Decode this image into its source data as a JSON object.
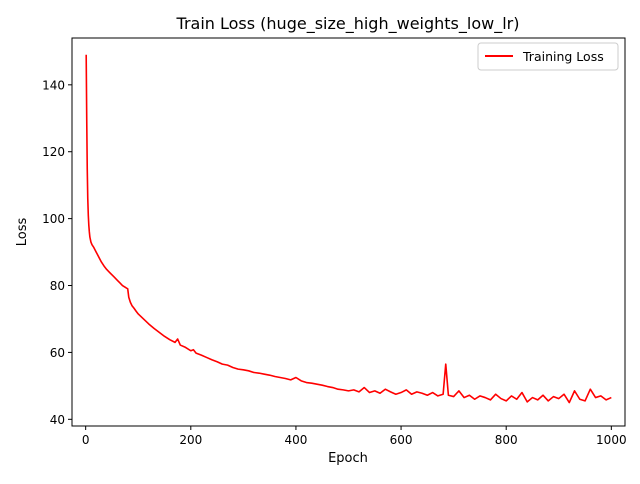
{
  "chart_data": {
    "type": "line",
    "title": "Train Loss (huge_size_high_weights_low_lr)",
    "xlabel": "Epoch",
    "ylabel": "Loss",
    "xlim": [
      -26,
      1026
    ],
    "ylim": [
      38,
      154
    ],
    "xticks": [
      0,
      200,
      400,
      600,
      800,
      1000
    ],
    "yticks": [
      40,
      60,
      80,
      100,
      120,
      140
    ],
    "xtick_labels": [
      "0",
      "200",
      "400",
      "600",
      "800",
      "1000"
    ],
    "ytick_labels": [
      "40",
      "60",
      "80",
      "100",
      "120",
      "140"
    ],
    "grid": false,
    "legend": {
      "placement": "upper right"
    },
    "series": [
      {
        "name": "Training Loss",
        "color": "#ff0000",
        "x": [
          1,
          2,
          3,
          4,
          5,
          6,
          7,
          8,
          10,
          12,
          15,
          20,
          25,
          30,
          35,
          40,
          45,
          50,
          55,
          60,
          65,
          70,
          75,
          80,
          82,
          85,
          88,
          92,
          96,
          100,
          110,
          120,
          130,
          140,
          150,
          160,
          170,
          175,
          180,
          190,
          200,
          205,
          210,
          220,
          230,
          240,
          250,
          260,
          270,
          280,
          290,
          300,
          310,
          320,
          330,
          340,
          350,
          360,
          370,
          380,
          390,
          400,
          410,
          420,
          430,
          440,
          450,
          460,
          470,
          480,
          490,
          500,
          510,
          520,
          530,
          540,
          550,
          560,
          570,
          580,
          590,
          600,
          610,
          620,
          630,
          640,
          650,
          660,
          670,
          680,
          685,
          690,
          700,
          710,
          720,
          730,
          740,
          750,
          760,
          770,
          780,
          790,
          800,
          810,
          820,
          830,
          840,
          850,
          860,
          870,
          880,
          890,
          900,
          910,
          920,
          930,
          940,
          950,
          960,
          970,
          980,
          990,
          1000
        ],
        "y": [
          149,
          130,
          115,
          106,
          101,
          98,
          96,
          94.5,
          93,
          92.2,
          91.5,
          90,
          88.5,
          87,
          85.8,
          84.8,
          84,
          83.2,
          82.4,
          81.6,
          80.8,
          80,
          79.5,
          79,
          76.5,
          75,
          74,
          73.2,
          72.3,
          71.5,
          70,
          68.5,
          67.2,
          66,
          64.8,
          63.8,
          63,
          64,
          62.2,
          61.5,
          60.5,
          60.8,
          59.8,
          59.2,
          58.5,
          57.8,
          57.2,
          56.5,
          56.2,
          55.5,
          55,
          54.8,
          54.5,
          54,
          53.8,
          53.5,
          53.2,
          52.8,
          52.5,
          52.2,
          51.8,
          52.5,
          51.5,
          51,
          50.8,
          50.5,
          50.2,
          49.8,
          49.5,
          49,
          48.8,
          48.5,
          48.8,
          48.2,
          49.5,
          48,
          48.5,
          47.8,
          49,
          48.2,
          47.5,
          48,
          48.8,
          47.5,
          48.2,
          47.8,
          47.2,
          48,
          47,
          47.5,
          56.5,
          47.2,
          46.8,
          48.5,
          46.5,
          47.2,
          46,
          47,
          46.5,
          45.8,
          47.5,
          46.2,
          45.5,
          47,
          46,
          48,
          45.2,
          46.5,
          45.8,
          47.2,
          45.5,
          46.8,
          46.2,
          47.5,
          45,
          48.5,
          46,
          45.5,
          49,
          46.5,
          47,
          45.8,
          46.5
        ]
      }
    ]
  }
}
